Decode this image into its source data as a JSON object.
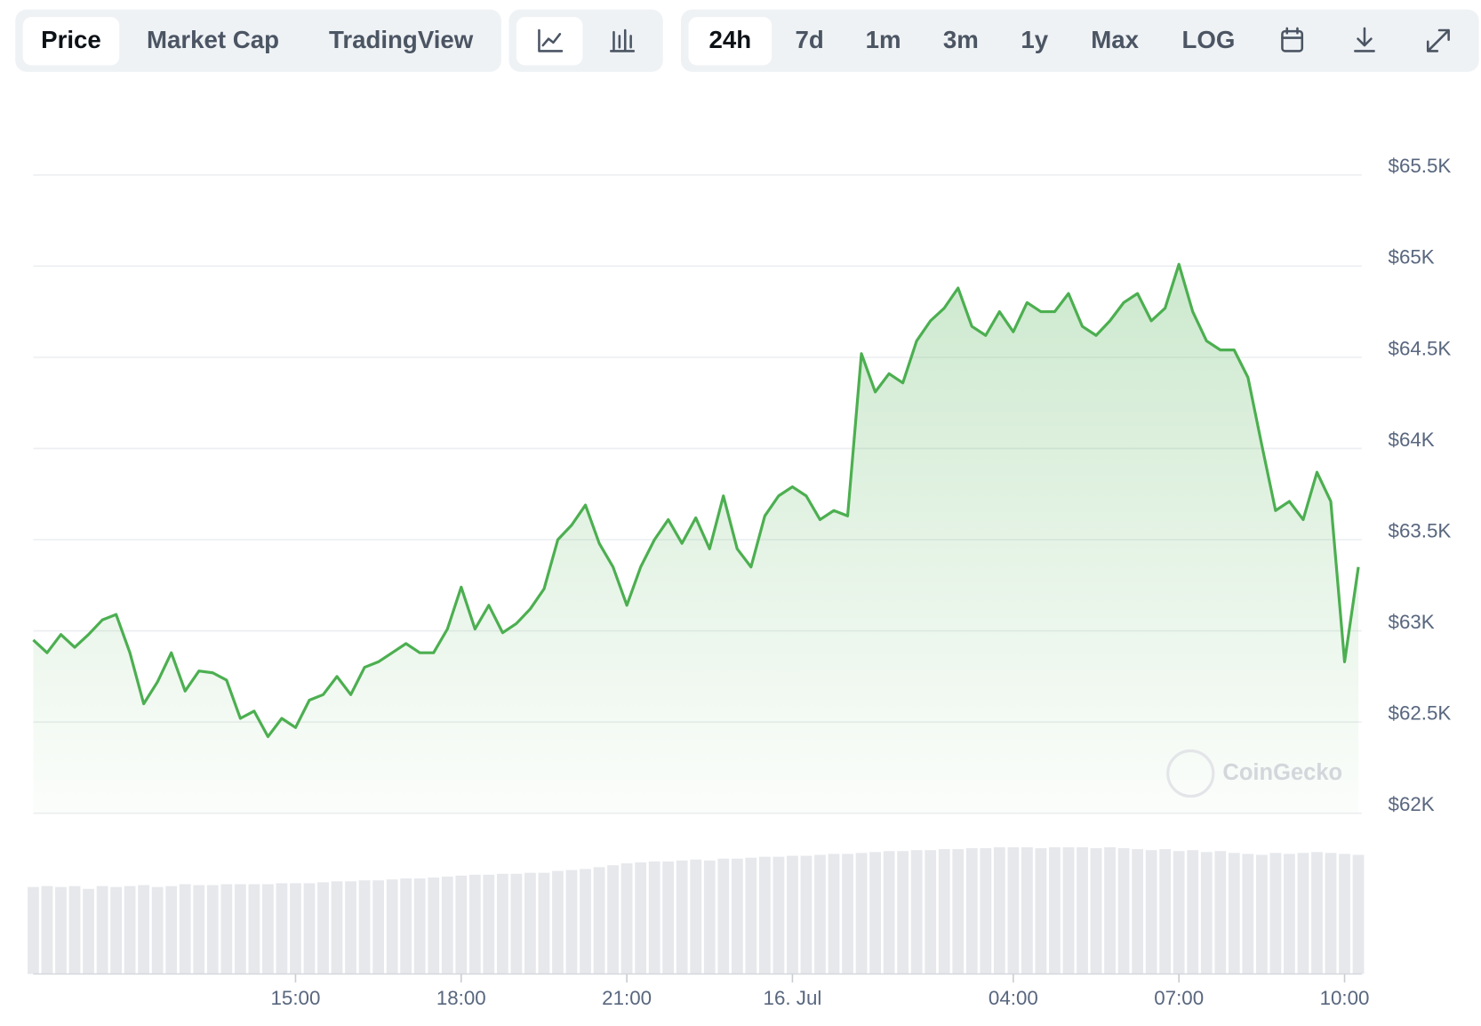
{
  "toolbar": {
    "tabs": [
      "Price",
      "Market Cap",
      "TradingView"
    ],
    "ranges": [
      "24h",
      "7d",
      "1m",
      "3m",
      "1y",
      "Max",
      "LOG"
    ]
  },
  "watermark": "CoinGecko",
  "chart_data": {
    "type": "line",
    "x": [
      10.25,
      10.5,
      10.75,
      11,
      11.25,
      11.5,
      11.75,
      12,
      12.25,
      12.5,
      12.75,
      13,
      13.25,
      13.5,
      13.75,
      14,
      14.25,
      14.5,
      14.75,
      15,
      15.25,
      15.5,
      15.75,
      16,
      16.25,
      16.5,
      16.75,
      17,
      17.25,
      17.5,
      17.75,
      18,
      18.25,
      18.5,
      18.75,
      19,
      19.25,
      19.5,
      19.75,
      20,
      20.25,
      20.5,
      20.75,
      21,
      21.25,
      21.5,
      21.75,
      22,
      22.25,
      22.5,
      22.75,
      23,
      23.25,
      23.5,
      23.75,
      24,
      24.25,
      24.5,
      24.75,
      25,
      25.25,
      25.5,
      25.75,
      26,
      26.25,
      26.5,
      26.75,
      27,
      27.25,
      27.5,
      27.75,
      28,
      28.25,
      28.5,
      28.75,
      29,
      29.25,
      29.5,
      29.75,
      30,
      30.25,
      30.5,
      30.75,
      31,
      31.25,
      31.5,
      31.75,
      32,
      32.25,
      32.5,
      32.75,
      33,
      33.25,
      33.5,
      33.75,
      34,
      34.25
    ],
    "series": [
      {
        "color": "#4caf50",
        "values": [
          62950,
          62880,
          62980,
          62910,
          62980,
          63060,
          63090,
          62880,
          62600,
          62720,
          62880,
          62670,
          62780,
          62770,
          62730,
          62520,
          62560,
          62420,
          62520,
          62470,
          62620,
          62650,
          62750,
          62650,
          62800,
          62830,
          62880,
          62930,
          62880,
          62880,
          63010,
          63240,
          63010,
          63140,
          62990,
          63040,
          63120,
          63230,
          63500,
          63580,
          63690,
          63480,
          63350,
          63140,
          63350,
          63500,
          63610,
          63480,
          63620,
          63450,
          63740,
          63450,
          63350,
          63630,
          63740,
          63790,
          63740,
          63610,
          63660,
          63630,
          64520,
          64310,
          64410,
          64360,
          64590,
          64700,
          64770,
          64880,
          64670,
          64620,
          64750,
          64640,
          64800,
          64750,
          64750,
          64850,
          64670,
          64620,
          64700,
          64800,
          64850,
          64700,
          64770,
          65010,
          64750,
          64590,
          64540,
          64540,
          64390,
          64020,
          63660,
          63710,
          63610,
          63870,
          63710,
          62830,
          63350
        ]
      }
    ],
    "volume": {
      "color": "#e6e8ec",
      "ylim": [
        0,
        150
      ],
      "values": [
        92,
        93,
        92,
        93,
        90,
        93,
        92,
        93,
        94,
        92,
        93,
        95,
        94,
        94,
        95,
        95,
        95,
        95,
        96,
        96,
        96,
        97,
        98,
        98,
        99,
        99,
        100,
        101,
        101,
        102,
        103,
        104,
        105,
        105,
        106,
        106,
        107,
        107,
        109,
        110,
        111,
        113,
        115,
        117,
        118,
        119,
        119,
        120,
        121,
        120,
        122,
        122,
        123,
        124,
        124,
        125,
        125,
        126,
        127,
        127,
        128,
        129,
        130,
        130,
        131,
        131,
        132,
        132,
        133,
        133,
        134,
        134,
        134,
        133,
        134,
        134,
        134,
        133,
        134,
        133,
        132,
        131,
        132,
        130,
        131,
        129,
        130,
        128,
        127,
        126,
        128,
        127,
        128,
        129,
        128,
        127,
        126
      ]
    },
    "xlim": [
      10.25,
      34.31
    ],
    "xticks": [
      {
        "value": 15,
        "label": "15:00"
      },
      {
        "value": 18,
        "label": "18:00"
      },
      {
        "value": 21,
        "label": "21:00"
      },
      {
        "value": 24,
        "label": "16. Jul"
      },
      {
        "value": 28,
        "label": "04:00"
      },
      {
        "value": 31,
        "label": "07:00"
      },
      {
        "value": 34,
        "label": "10:00"
      }
    ],
    "ylim": [
      62000,
      65500
    ],
    "yticks": [
      {
        "value": 62000,
        "label": "$62K"
      },
      {
        "value": 62500,
        "label": "$62.5K"
      },
      {
        "value": 63000,
        "label": "$63K"
      },
      {
        "value": 63500,
        "label": "$63.5K"
      },
      {
        "value": 64000,
        "label": "$64K"
      },
      {
        "value": 64500,
        "label": "$64.5K"
      },
      {
        "value": 65000,
        "label": "$65K"
      },
      {
        "value": 65500,
        "label": "$65.5K"
      }
    ],
    "grid": true
  }
}
